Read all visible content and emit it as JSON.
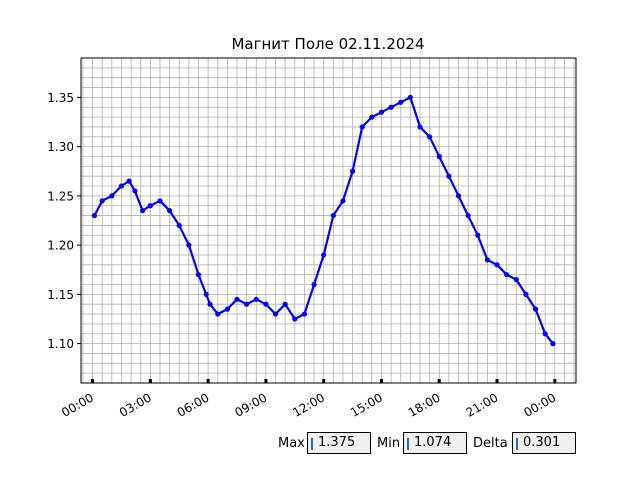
{
  "chart_data": {
    "type": "line",
    "title": "Магнит Поле 02.11.2024",
    "xlabel": "",
    "ylabel": "",
    "x_tick_labels": [
      "00:00",
      "03:00",
      "06:00",
      "09:00",
      "12:00",
      "15:00",
      "18:00",
      "21:00",
      "00:00"
    ],
    "x_ticks_hours": [
      0,
      3,
      6,
      9,
      12,
      15,
      18,
      21,
      24
    ],
    "y_tick_labels": [
      "1.10",
      "1.15",
      "1.20",
      "1.25",
      "1.30",
      "1.35"
    ],
    "y_ticks": [
      1.1,
      1.15,
      1.2,
      1.25,
      1.3,
      1.35
    ],
    "xlim_hours": [
      -0.6,
      25.1
    ],
    "ylim": [
      1.06,
      1.39
    ],
    "grid": true,
    "line_color": "#0000ff",
    "marker": "circle",
    "series": [
      {
        "x_hours": [
          0.1,
          0.5,
          1.0,
          1.5,
          1.9,
          2.2,
          2.6,
          3.0,
          3.5,
          4.0,
          4.5,
          5.0,
          5.5,
          5.9,
          6.1,
          6.5,
          7.0,
          7.5,
          8.0,
          8.5,
          9.0,
          9.5,
          10.0,
          10.5,
          11.0,
          11.5,
          12.0,
          12.5,
          13.0,
          13.5,
          14.0,
          14.5,
          15.0,
          15.5,
          16.0,
          16.5,
          17.0,
          17.5,
          18.0,
          18.5,
          19.0,
          19.5,
          20.0,
          20.5,
          21.0,
          21.5,
          22.0,
          22.5,
          23.0,
          23.5,
          23.9
        ],
        "values": [
          1.23,
          1.245,
          1.25,
          1.26,
          1.265,
          1.255,
          1.235,
          1.24,
          1.245,
          1.235,
          1.22,
          1.2,
          1.17,
          1.15,
          1.14,
          1.13,
          1.135,
          1.145,
          1.14,
          1.145,
          1.14,
          1.13,
          1.14,
          1.125,
          1.13,
          1.16,
          1.19,
          1.23,
          1.245,
          1.275,
          1.32,
          1.33,
          1.335,
          1.34,
          1.345,
          1.35,
          1.32,
          1.31,
          1.29,
          1.27,
          1.25,
          1.23,
          1.21,
          1.185,
          1.18,
          1.17,
          1.165,
          1.15,
          1.135,
          1.11,
          1.1
        ]
      }
    ]
  },
  "stats": {
    "max_label": "Max",
    "max_value": "1.375",
    "min_label": "Min",
    "min_value": "1.074",
    "delta_label": "Delta",
    "delta_value": "0.301"
  }
}
